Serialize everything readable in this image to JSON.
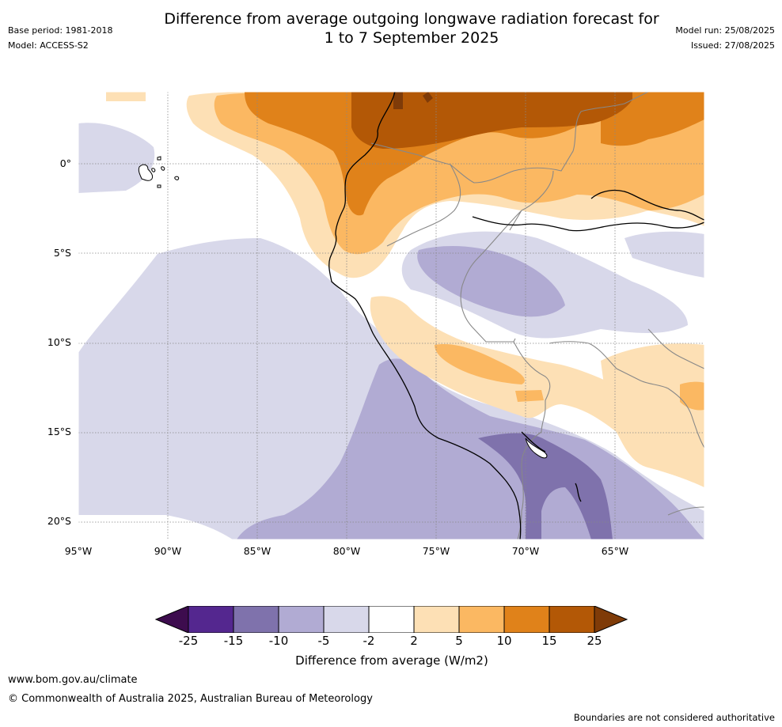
{
  "header": {
    "title": "Difference from average outgoing longwave radiation forecast for\n1 to 7 September 2025",
    "base_period": "Base period: 1981-2018",
    "model": "Model: ACCESS-S2",
    "model_run": "Model run: 25/08/2025",
    "issued": "Issued: 27/08/2025"
  },
  "map": {
    "lat_ticks": [
      "0°",
      "5°S",
      "10°S",
      "15°S",
      "20°S"
    ],
    "lon_ticks": [
      "95°W",
      "90°W",
      "85°W",
      "80°W",
      "75°W",
      "70°W",
      "65°W"
    ],
    "extent": {
      "lon": [
        -95,
        -60.5
      ],
      "lat": [
        -21,
        4
      ]
    }
  },
  "colorbar": {
    "label": "Difference from average (W/m2)",
    "ticks": [
      "-25",
      "-15",
      "-10",
      "-5",
      "-2",
      "2",
      "5",
      "10",
      "15",
      "25"
    ],
    "colors": [
      "#3d0c4e",
      "#54278f",
      "#7f72ac",
      "#b1abd3",
      "#d8d8ea",
      "#ffffff",
      "#fde0b5",
      "#fbb862",
      "#e0821a",
      "#b35806",
      "#7f3b08"
    ]
  },
  "footer": {
    "url": "www.bom.gov.au/climate",
    "copyright": "© Commonwealth of Australia 2025, Australian Bureau of Meteorology",
    "disclaimer": "Boundaries are not considered authoritative"
  }
}
